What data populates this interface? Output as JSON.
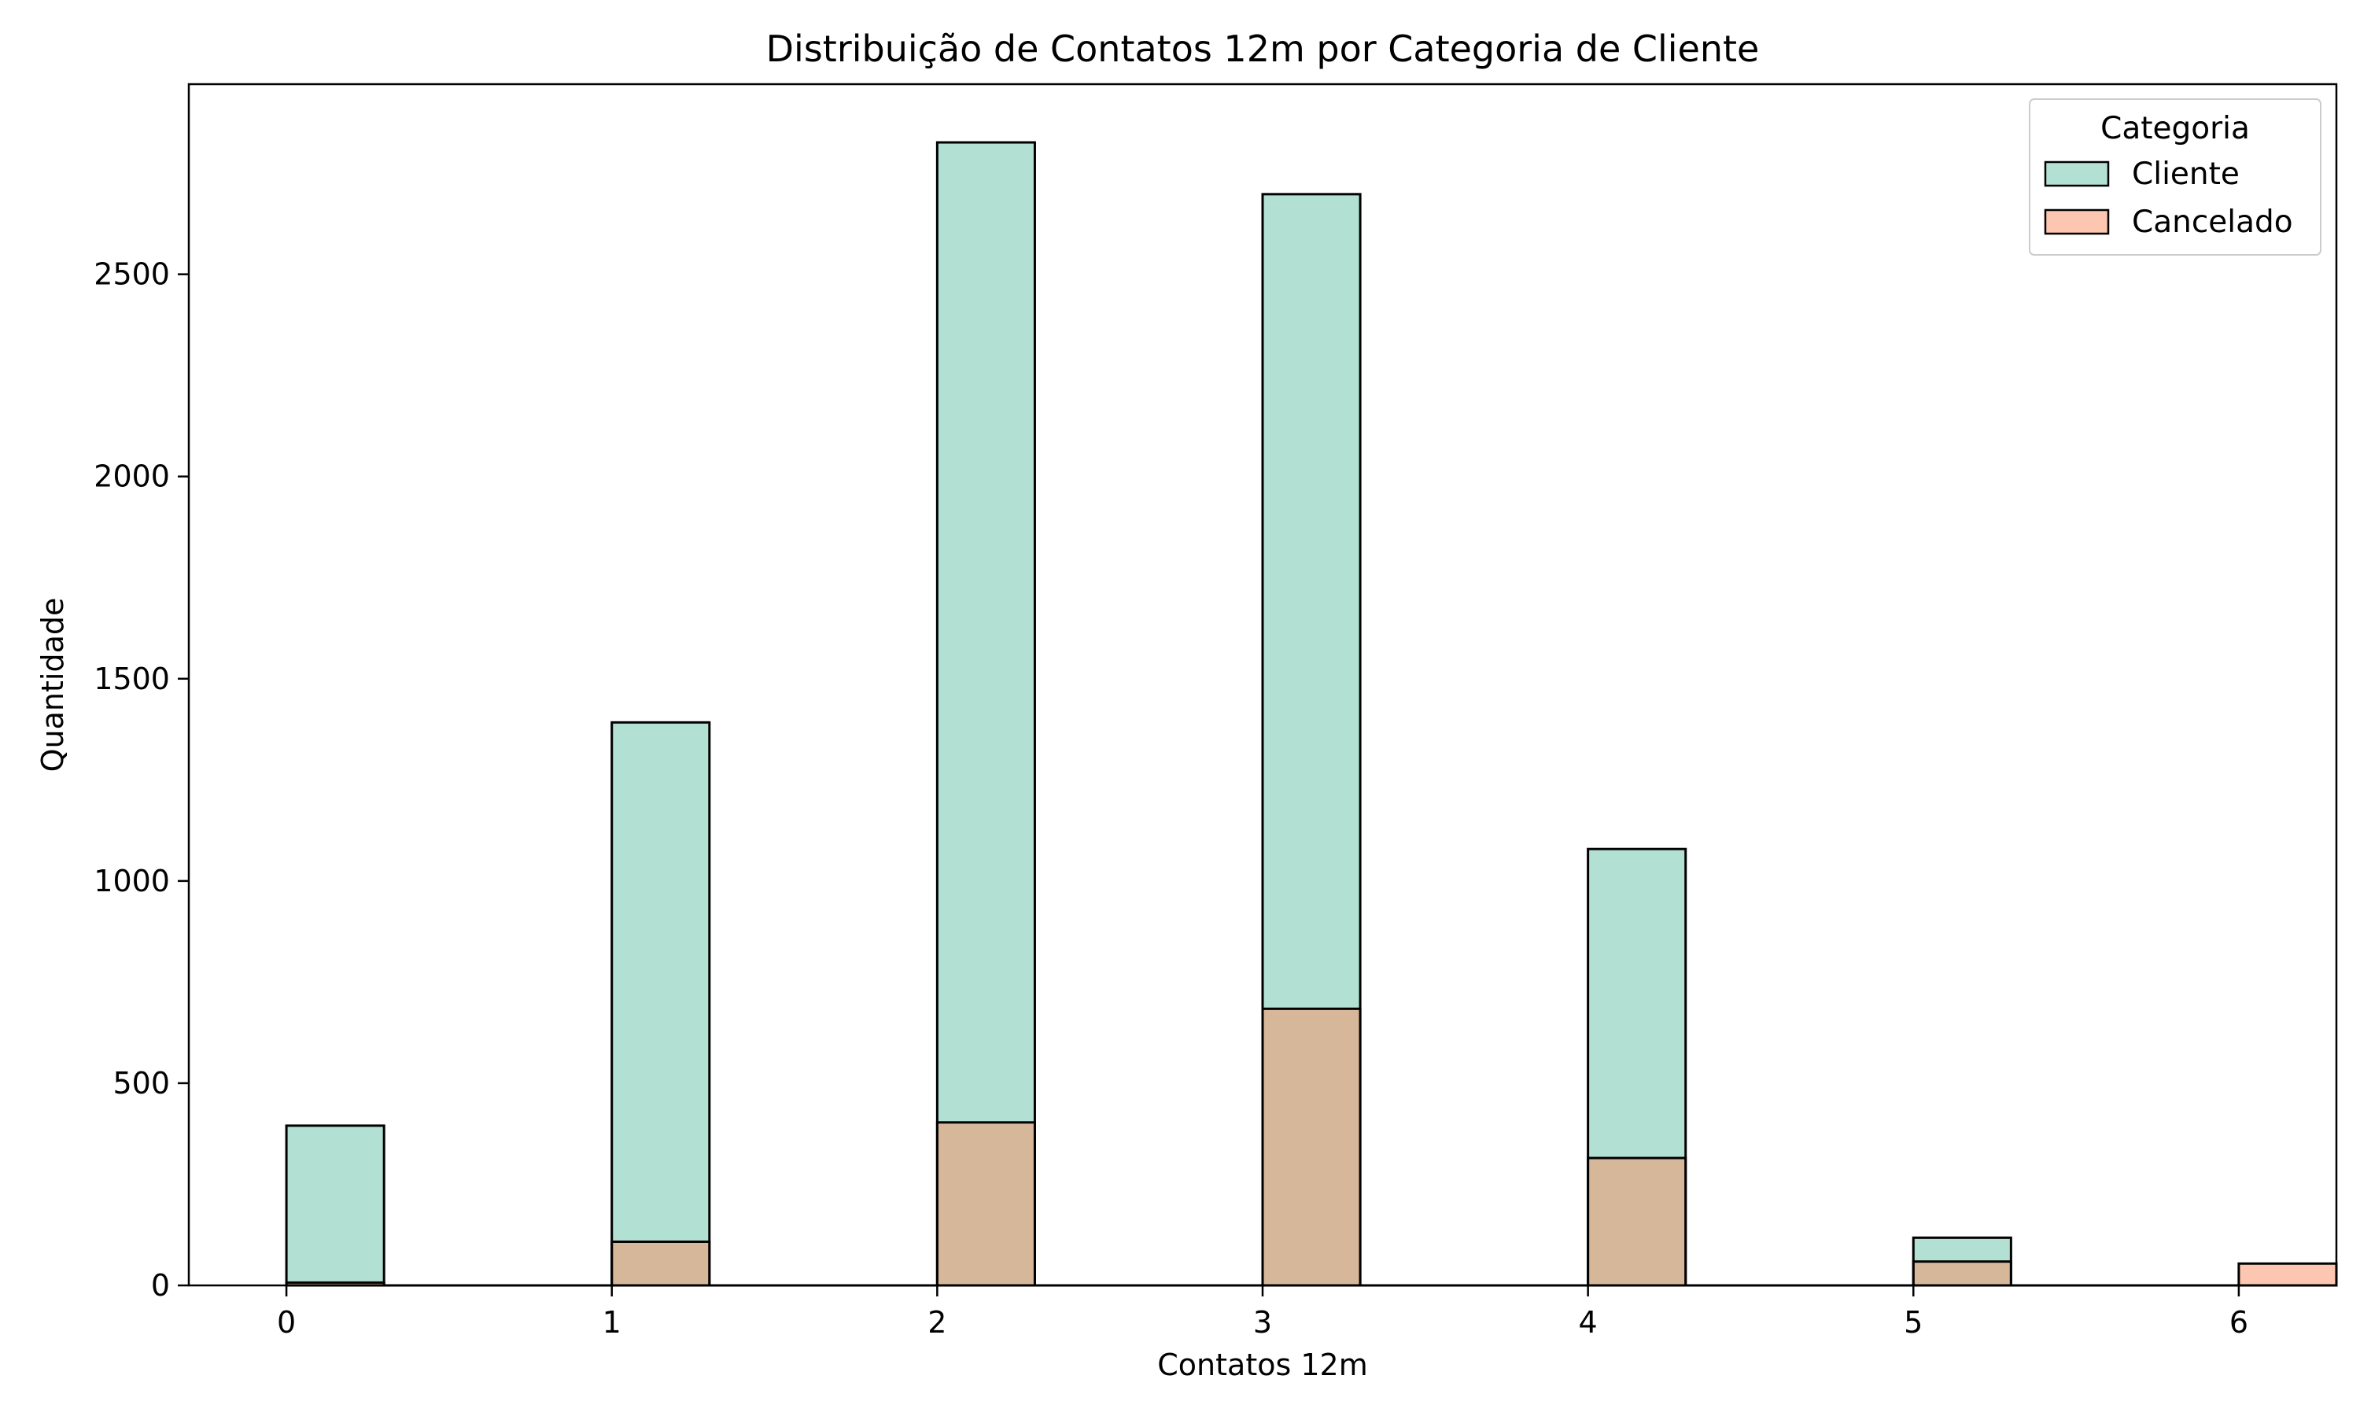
{
  "chart_data": {
    "type": "bar",
    "title": "Distribuição de Contatos 12m por Categoria de Cliente",
    "xlabel": "Contatos 12m",
    "ylabel": "Quantidade",
    "xlim": [
      -0.3,
      6.3
    ],
    "ylim": [
      0,
      2970
    ],
    "x_ticks": [
      0,
      1,
      2,
      3,
      4,
      5,
      6
    ],
    "y_ticks": [
      0,
      500,
      1000,
      1500,
      2000,
      2500
    ],
    "bin_width": 0.3,
    "grid": false,
    "legend": {
      "title": "Categoria",
      "position": "top-right"
    },
    "series": [
      {
        "name": "Cliente",
        "color": "#66c2a5",
        "bins": [
          {
            "x": 0,
            "value": 395
          },
          {
            "x": 1,
            "value": 1392
          },
          {
            "x": 2,
            "value": 2826
          },
          {
            "x": 3,
            "value": 2698
          },
          {
            "x": 4,
            "value": 1079
          },
          {
            "x": 5,
            "value": 118
          },
          {
            "x": 6,
            "value": 0
          }
        ]
      },
      {
        "name": "Cancelado",
        "color": "#fc8d62",
        "bins": [
          {
            "x": 0,
            "value": 7
          },
          {
            "x": 1,
            "value": 108
          },
          {
            "x": 2,
            "value": 403
          },
          {
            "x": 3,
            "value": 684
          },
          {
            "x": 4,
            "value": 315
          },
          {
            "x": 5,
            "value": 59
          },
          {
            "x": 6,
            "value": 54
          }
        ]
      }
    ]
  }
}
